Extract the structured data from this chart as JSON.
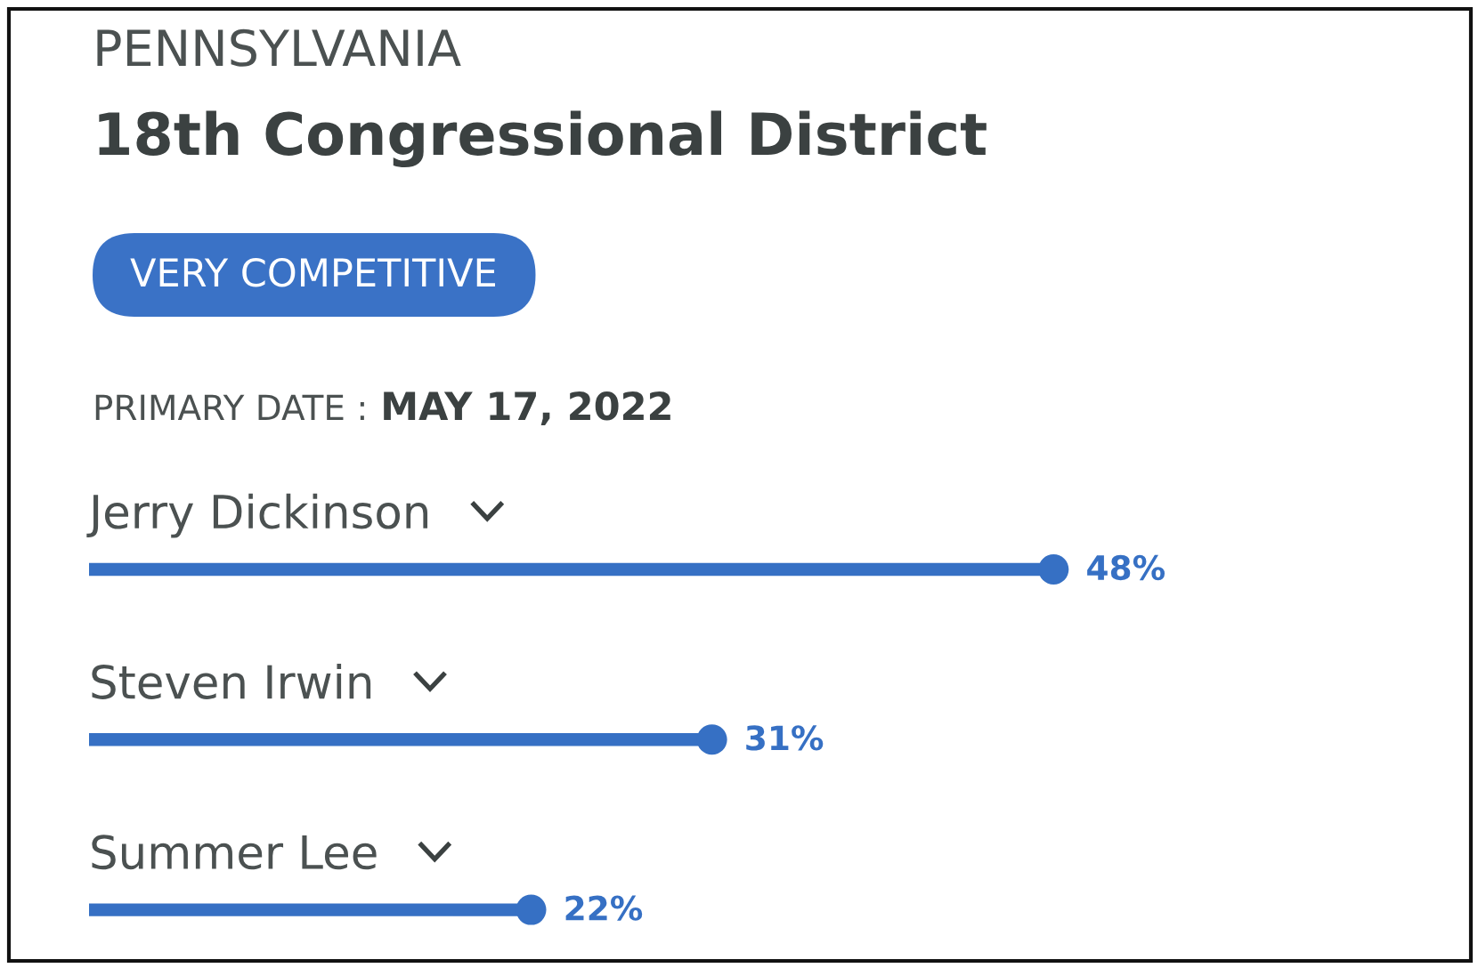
{
  "chart_data": {
    "type": "lollipop",
    "orientation": "horizontal",
    "title": "PENNSYLVANIA",
    "subtitle": "18th Congressional District",
    "annotations": [
      "VERY COMPETITIVE",
      "PRIMARY DATE :",
      "MAY 17, 2022"
    ],
    "categories": [
      "Jerry Dickinson",
      "Steven Irwin",
      "Summer Lee"
    ],
    "values": [
      48,
      31,
      22
    ],
    "value_labels": [
      "48%",
      "31%",
      "22%"
    ],
    "color": "#3670c4",
    "marker": "circle",
    "tick_labels": "y"
  }
}
